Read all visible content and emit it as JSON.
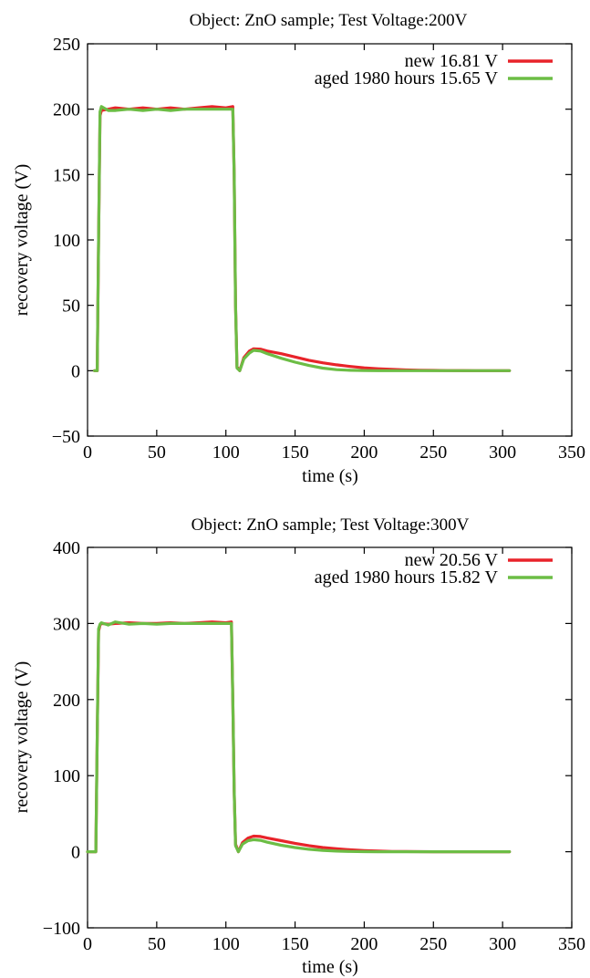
{
  "chart_data": [
    {
      "type": "line",
      "title": "Object: ZnO sample; Test Voltage:200V",
      "xlabel": "time (s)",
      "ylabel": "recovery voltage (V)",
      "xlim": [
        0,
        350
      ],
      "ylim": [
        -50,
        250
      ],
      "xticks": [
        0,
        50,
        100,
        150,
        200,
        250,
        300,
        350
      ],
      "yticks": [
        -50,
        0,
        50,
        100,
        150,
        200,
        250
      ],
      "xtick_labels": [
        "0",
        "50",
        "100",
        "150",
        "200",
        "250",
        "300",
        "350"
      ],
      "ytick_labels": [
        "−50",
        "0",
        "50",
        "100",
        "150",
        "200",
        "250"
      ],
      "grid": false,
      "legend_position": "top-right",
      "series": [
        {
          "name": "new 16.81 V",
          "color": "#e8232a",
          "x": [
            5,
            7,
            8,
            9,
            10,
            15,
            20,
            30,
            40,
            50,
            60,
            70,
            80,
            90,
            100,
            105,
            106,
            107,
            108,
            110,
            113,
            117,
            120,
            125,
            130,
            140,
            150,
            160,
            170,
            180,
            190,
            200,
            210,
            220,
            230,
            240,
            250,
            260,
            280,
            300,
            305
          ],
          "y": [
            0,
            0,
            100,
            195,
            199,
            200,
            201,
            200,
            201,
            200,
            201,
            200,
            201,
            202,
            201,
            202,
            150,
            50,
            3,
            0,
            10,
            15,
            16.8,
            16.5,
            15,
            13,
            10.5,
            8,
            6,
            4.5,
            3.2,
            2.2,
            1.5,
            1,
            0.6,
            0.3,
            0.2,
            0.1,
            0,
            0,
            0
          ]
        },
        {
          "name": "aged 1980 hours 15.65 V",
          "color": "#6cbd45",
          "x": [
            5,
            7,
            8,
            9,
            10,
            15,
            20,
            30,
            40,
            50,
            60,
            70,
            80,
            90,
            100,
            105,
            106,
            107,
            108,
            110,
            113,
            117,
            120,
            125,
            130,
            140,
            150,
            160,
            170,
            180,
            190,
            200,
            210,
            220,
            230,
            240,
            250,
            260,
            280,
            300,
            305
          ],
          "y": [
            0,
            0,
            100,
            198,
            202,
            199,
            199,
            200,
            199,
            200,
            199,
            200,
            200,
            200,
            200,
            200,
            150,
            50,
            2,
            0,
            9,
            13.5,
            15.6,
            15,
            13,
            9.5,
            6.5,
            4,
            2,
            0.8,
            0.3,
            0.1,
            0,
            0,
            0,
            0,
            0,
            0,
            0,
            0,
            0
          ]
        }
      ]
    },
    {
      "type": "line",
      "title": "Object: ZnO sample; Test Voltage:300V",
      "xlabel": "time (s)",
      "ylabel": "recovery voltage (V)",
      "xlim": [
        0,
        350
      ],
      "ylim": [
        -100,
        400
      ],
      "xticks": [
        0,
        50,
        100,
        150,
        200,
        250,
        300,
        350
      ],
      "yticks": [
        -100,
        0,
        100,
        200,
        300,
        400
      ],
      "xtick_labels": [
        "0",
        "50",
        "100",
        "150",
        "200",
        "250",
        "300",
        "350"
      ],
      "ytick_labels": [
        "−100",
        "0",
        "100",
        "200",
        "300",
        "400"
      ],
      "grid": false,
      "legend_position": "top-right",
      "series": [
        {
          "name": "new 20.56 V",
          "color": "#e8232a",
          "x": [
            0,
            6,
            7,
            8,
            9,
            10,
            15,
            20,
            30,
            40,
            50,
            60,
            70,
            80,
            90,
            100,
            104,
            105,
            106,
            107,
            109,
            112,
            116,
            120,
            125,
            130,
            140,
            150,
            160,
            170,
            180,
            190,
            200,
            210,
            220,
            230,
            250,
            280,
            305
          ],
          "y": [
            0,
            0,
            150,
            290,
            298,
            300,
            299,
            300,
            301,
            300,
            300,
            301,
            300,
            301,
            302,
            301,
            302,
            200,
            80,
            10,
            0,
            12,
            18,
            20.5,
            20,
            18,
            14.5,
            11,
            8,
            5.5,
            3.8,
            2.5,
            1.5,
            0.8,
            0.4,
            0.2,
            0,
            0,
            0
          ]
        },
        {
          "name": "aged 1980 hours 15.82 V",
          "color": "#6cbd45",
          "x": [
            0,
            6,
            7,
            8,
            9,
            10,
            15,
            20,
            30,
            40,
            50,
            60,
            70,
            80,
            90,
            100,
            104,
            105,
            106,
            107,
            109,
            112,
            116,
            120,
            125,
            130,
            140,
            150,
            160,
            170,
            180,
            190,
            200,
            210,
            220,
            230,
            250,
            280,
            305
          ],
          "y": [
            0,
            0,
            150,
            293,
            299,
            301,
            298,
            302,
            299,
            300,
            299,
            300,
            300,
            300,
            300,
            300,
            300,
            200,
            80,
            8,
            0,
            10,
            14.5,
            15.8,
            15,
            12.5,
            8.5,
            5.5,
            3.2,
            1.8,
            0.8,
            0.3,
            0.1,
            0,
            0,
            0,
            0,
            0,
            0
          ]
        }
      ]
    }
  ]
}
